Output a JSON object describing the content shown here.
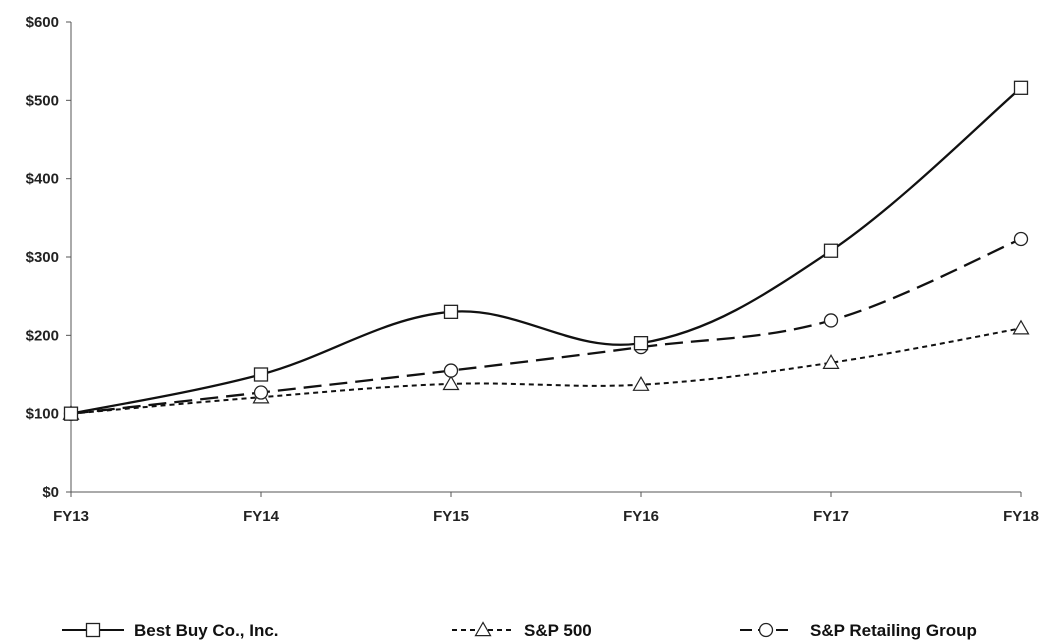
{
  "chart_data": {
    "type": "line",
    "categories": [
      "FY13",
      "FY14",
      "FY15",
      "FY16",
      "FY17",
      "FY18"
    ],
    "series": [
      {
        "name": "Best Buy Co., Inc.",
        "values": [
          100,
          150,
          230,
          190,
          308,
          516
        ],
        "marker": "square",
        "dash": "solid",
        "color": "#111111"
      },
      {
        "name": "S&P 500",
        "values": [
          100,
          121,
          138,
          137,
          165,
          209
        ],
        "marker": "triangle",
        "dash": "dotted",
        "color": "#111111"
      },
      {
        "name": "S&P Retailing Group",
        "values": [
          100,
          127,
          155,
          185,
          219,
          323
        ],
        "marker": "circle",
        "dash": "dashed",
        "color": "#111111"
      }
    ],
    "y_ticks": [
      "$0",
      "$100",
      "$200",
      "$300",
      "$400",
      "$500",
      "$600"
    ],
    "y_tick_values": [
      0,
      100,
      200,
      300,
      400,
      500,
      600
    ],
    "ylim": [
      0,
      600
    ],
    "grid": false,
    "legend_position": "bottom"
  }
}
